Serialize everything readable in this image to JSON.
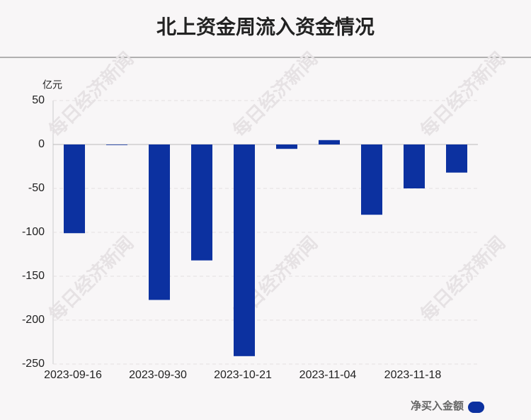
{
  "chart_data": {
    "type": "bar",
    "title": "北上资金周流入资金情况",
    "y_label": "亿元",
    "watermark": "每日经济新闻",
    "categories": [
      "2023-09-16",
      null,
      "2023-09-30",
      null,
      "2023-10-21",
      null,
      "2023-11-04",
      null,
      "2023-11-18",
      null
    ],
    "series": [
      {
        "name": "净买入金额",
        "color": "#0c31a0",
        "values": [
          -101,
          -0.5,
          -177,
          -132,
          -241,
          -5,
          5,
          -80,
          -50,
          -32
        ]
      }
    ],
    "ylim": [
      -250,
      50
    ],
    "yticks": [
      -250,
      -200,
      -150,
      -100,
      -50,
      0,
      50
    ],
    "grid": true
  }
}
